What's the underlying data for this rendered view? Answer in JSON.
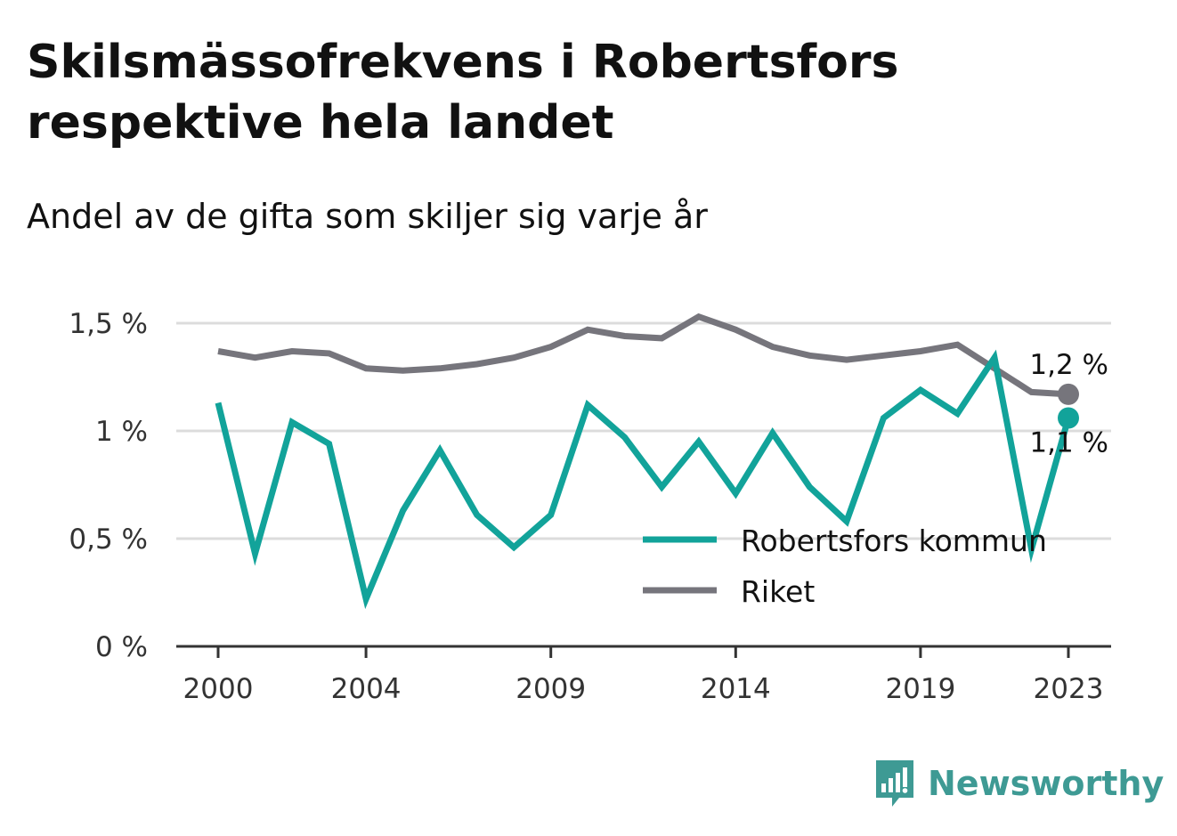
{
  "title": "Skilsmässofrekvens i Robertsfors respektive hela landet",
  "subtitle": "Andel av de gifta som skiljer sig varje år",
  "brand": "Newsworthy",
  "colors": {
    "robertsfors": "#12a39a",
    "riket": "#76757c",
    "grid": "#dcdcdc",
    "axis": "#333333"
  },
  "chart_data": {
    "type": "line",
    "ylim": [
      0,
      1.5
    ],
    "yticks": [
      {
        "value": 0,
        "label": "0 %"
      },
      {
        "value": 0.5,
        "label": "0,5 %"
      },
      {
        "value": 1,
        "label": "1 %"
      },
      {
        "value": 1.5,
        "label": "1,5 %"
      }
    ],
    "xlim": [
      2000,
      2023
    ],
    "xticks": [
      {
        "value": 2000,
        "label": "2000"
      },
      {
        "value": 2004,
        "label": "2004"
      },
      {
        "value": 2009,
        "label": "2009"
      },
      {
        "value": 2014,
        "label": "2014"
      },
      {
        "value": 2019,
        "label": "2019"
      },
      {
        "value": 2023,
        "label": "2023"
      }
    ],
    "x": [
      2000,
      2001,
      2002,
      2003,
      2004,
      2005,
      2006,
      2007,
      2008,
      2009,
      2010,
      2011,
      2012,
      2013,
      2014,
      2015,
      2016,
      2017,
      2018,
      2019,
      2020,
      2021,
      2022,
      2023
    ],
    "series": [
      {
        "name": "Robertsfors kommun",
        "color": "#12a39a",
        "values": [
          1.13,
          0.43,
          1.04,
          0.94,
          0.22,
          0.63,
          0.91,
          0.61,
          0.46,
          0.61,
          1.12,
          0.97,
          0.74,
          0.95,
          0.71,
          0.99,
          0.74,
          0.58,
          1.06,
          1.19,
          1.08,
          1.34,
          0.45,
          1.06
        ],
        "end_label": "1,1 %"
      },
      {
        "name": "Riket",
        "color": "#76757c",
        "values": [
          1.37,
          1.34,
          1.37,
          1.36,
          1.29,
          1.28,
          1.29,
          1.31,
          1.34,
          1.39,
          1.47,
          1.44,
          1.43,
          1.53,
          1.47,
          1.39,
          1.35,
          1.33,
          1.35,
          1.37,
          1.4,
          1.29,
          1.18,
          1.17
        ],
        "end_label": "1,2 %"
      }
    ],
    "legend_position": "bottom-right",
    "grid": true
  }
}
